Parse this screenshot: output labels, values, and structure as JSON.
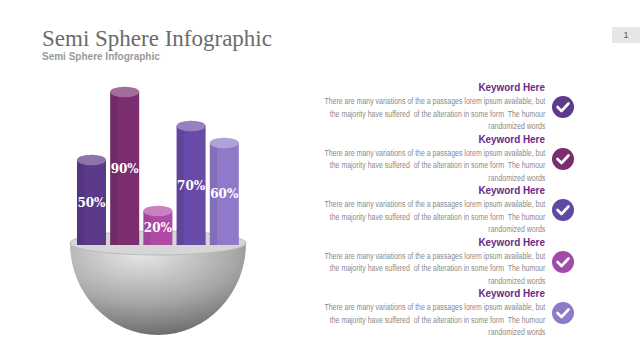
{
  "page_number": "1",
  "chart_data": {
    "type": "bar",
    "title": "Semi Sphere Infographic",
    "subtitle": "Semi Sphere Infographic",
    "categories": [
      null,
      null,
      null,
      null,
      null
    ],
    "values": [
      50,
      90,
      20,
      70,
      60
    ],
    "value_labels": [
      "50%",
      "90%",
      "20%",
      "70%",
      "60%"
    ],
    "data_labels": true,
    "colors": [
      "#5b3a8a",
      "#7a2e6e",
      "#b04aa6",
      "#6a4aa8",
      "#8f79c8"
    ],
    "ylim": [
      0,
      100
    ],
    "tick_labels": false
  },
  "items": [
    {
      "title": "Keyword Here",
      "lines": [
        "There are many variations of the a passages lorem ipsum available, but",
        "the majority have suffered  of the alteration in some form  The humour",
        "randomized words"
      ]
    },
    {
      "title": "Keyword Here",
      "lines": [
        "There are many variations of the a passages lorem ipsum available, but",
        "the majority have suffered  of the alteration in some form  The humour",
        "randomized words"
      ]
    },
    {
      "title": "Keyword Here",
      "lines": [
        "There are many variations of the a passages lorem ipsum available, but",
        "the majority have suffered  of the alteration in some form  The humour",
        "randomized words"
      ]
    },
    {
      "title": "Keyword Here",
      "lines": [
        "There are many variations of the a passages lorem ipsum available, but",
        "the majority have suffered  of the alteration in some form  The humour",
        "randomized words"
      ]
    },
    {
      "title": "Keyword Here",
      "lines": [
        "There are many variations of the a passages lorem ipsum available, but",
        "the majority have suffered  of the alteration in some form  The humour",
        "randomized words"
      ]
    }
  ]
}
